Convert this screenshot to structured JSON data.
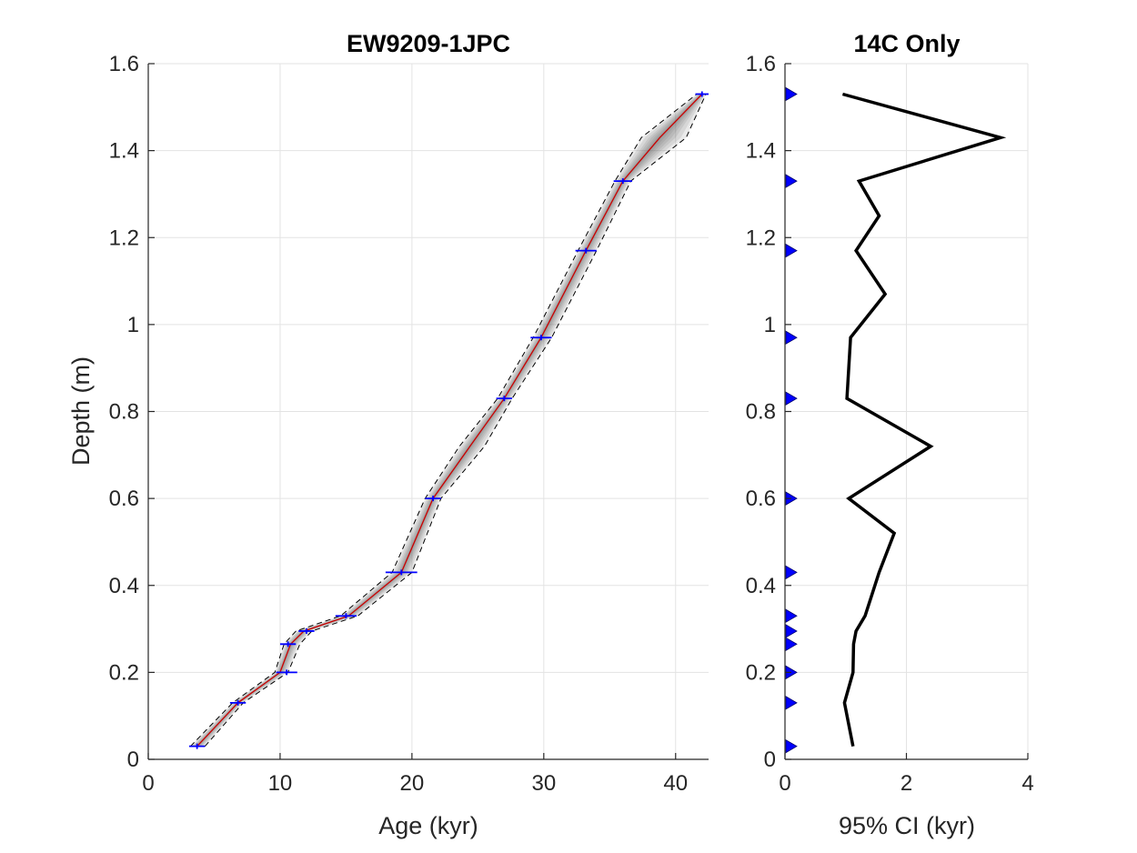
{
  "chart_data": [
    {
      "type": "line",
      "title": "EW9209-1JPC",
      "xlabel": "Age (kyr)",
      "ylabel": "Depth (m)",
      "xlim": [
        0,
        42.5
      ],
      "ylim": [
        0,
        1.6
      ],
      "xticks": [
        0,
        10,
        20,
        30,
        40
      ],
      "yticks": [
        0,
        0.2,
        0.4,
        0.6,
        0.8,
        1,
        1.2,
        1.4,
        1.6
      ],
      "grid": true,
      "series": [
        {
          "role": "median",
          "color": "#cc0000",
          "x": [
            3.7,
            6.8,
            10.0,
            10.8,
            11.8,
            15.2,
            19.2,
            21.6,
            24.4,
            27.0,
            29.8,
            33.2,
            36.0,
            38.8,
            42.0
          ],
          "y": [
            0.03,
            0.13,
            0.2,
            0.265,
            0.295,
            0.33,
            0.43,
            0.6,
            0.72,
            0.83,
            0.97,
            1.17,
            1.33,
            1.43,
            1.53
          ]
        },
        {
          "role": "lower-2.5%",
          "color": "#000000",
          "x": [
            3.2,
            6.4,
            9.6,
            10.3,
            11.2,
            14.6,
            18.5,
            21.0,
            23.6,
            26.5,
            29.2,
            32.6,
            35.4,
            37.4,
            41.6
          ],
          "y": [
            0.03,
            0.13,
            0.2,
            0.265,
            0.295,
            0.33,
            0.43,
            0.6,
            0.72,
            0.83,
            0.97,
            1.17,
            1.33,
            1.43,
            1.53
          ]
        },
        {
          "role": "upper-97.5%",
          "color": "#000000",
          "x": [
            4.3,
            7.2,
            10.6,
            11.5,
            12.4,
            15.9,
            20.0,
            22.2,
            25.5,
            27.6,
            30.6,
            34.0,
            36.6,
            40.8,
            42.3
          ],
          "y": [
            0.03,
            0.13,
            0.2,
            0.265,
            0.295,
            0.33,
            0.43,
            0.6,
            0.72,
            0.83,
            0.97,
            1.17,
            1.33,
            1.43,
            1.53
          ]
        }
      ],
      "dates": {
        "color": "#0000ff",
        "points": [
          {
            "age": 3.7,
            "depth": 0.03,
            "err": 0.6
          },
          {
            "age": 6.8,
            "depth": 0.13,
            "err": 0.6
          },
          {
            "age": 10.5,
            "depth": 0.2,
            "err": 0.8
          },
          {
            "age": 10.6,
            "depth": 0.265,
            "err": 0.6
          },
          {
            "age": 12.0,
            "depth": 0.295,
            "err": 0.6
          },
          {
            "age": 15.0,
            "depth": 0.33,
            "err": 0.8
          },
          {
            "age": 19.2,
            "depth": 0.43,
            "err": 1.2
          },
          {
            "age": 21.6,
            "depth": 0.6,
            "err": 0.6
          },
          {
            "age": 27.0,
            "depth": 0.83,
            "err": 0.6
          },
          {
            "age": 29.8,
            "depth": 0.97,
            "err": 0.8
          },
          {
            "age": 33.2,
            "depth": 1.17,
            "err": 0.8
          },
          {
            "age": 36.0,
            "depth": 1.33,
            "err": 0.7
          },
          {
            "age": 42.0,
            "depth": 1.53,
            "err": 0.5
          }
        ]
      }
    },
    {
      "type": "line",
      "title": "14C Only",
      "xlabel": "95% CI (kyr)",
      "ylabel": "",
      "xlim": [
        0,
        4
      ],
      "ylim": [
        0,
        1.6
      ],
      "xticks": [
        0,
        2,
        4
      ],
      "yticks": [
        0,
        0.2,
        0.4,
        0.6,
        0.8,
        1,
        1.2,
        1.4,
        1.6
      ],
      "grid": true,
      "series": [
        {
          "role": "ci-width",
          "color": "#000000",
          "x": [
            1.12,
            0.98,
            1.12,
            1.13,
            1.17,
            1.32,
            1.55,
            1.8,
            1.05,
            2.4,
            1.02,
            1.08,
            1.65,
            1.17,
            1.55,
            1.22,
            3.55,
            0.95
          ],
          "y": [
            0.03,
            0.13,
            0.2,
            0.265,
            0.295,
            0.33,
            0.43,
            0.52,
            0.6,
            0.72,
            0.83,
            0.97,
            1.07,
            1.17,
            1.25,
            1.33,
            1.43,
            1.53
          ]
        }
      ],
      "markers": {
        "color": "#0000ff",
        "x": 0,
        "depths": [
          0.03,
          0.13,
          0.2,
          0.265,
          0.295,
          0.33,
          0.43,
          0.6,
          0.83,
          0.97,
          1.17,
          1.33,
          1.53
        ]
      }
    }
  ]
}
